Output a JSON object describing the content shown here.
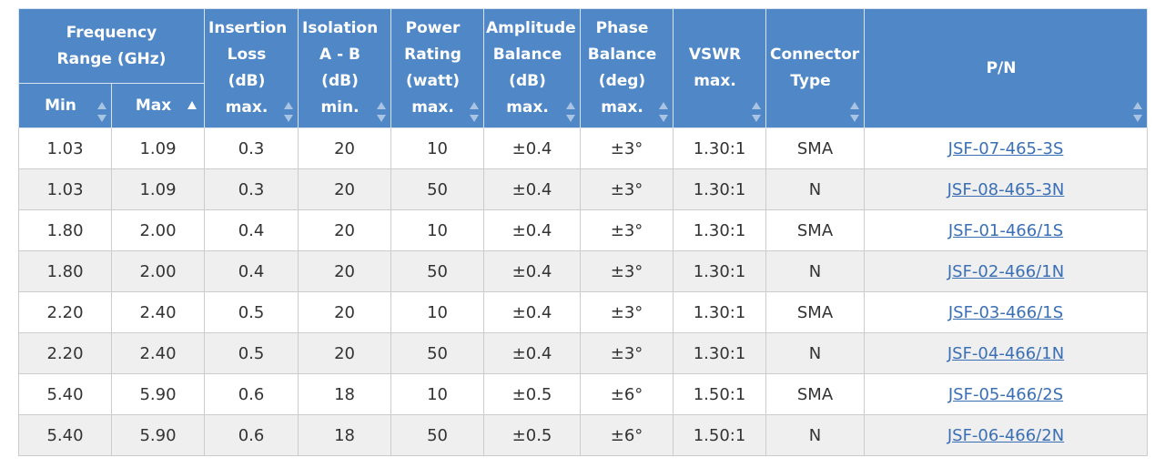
{
  "headers": {
    "frequency_range": "Frequency Range (GHz)",
    "min": "Min",
    "max": "Max",
    "insertion_loss": "Insertion Loss (dB) max.",
    "isolation": "Isolation A - B (dB) min.",
    "power_rating": "Power Rating (watt) max.",
    "amplitude_balance": "Amplitude Balance (dB) max.",
    "phase_balance": "Phase Balance (deg) max.",
    "vswr": "VSWR max.",
    "connector_type": "Connector Type",
    "pn": "P/N"
  },
  "rows": [
    {
      "min": "1.03",
      "max": "1.09",
      "il": "0.3",
      "iso": "20",
      "power": "10",
      "amp": "±0.4",
      "phase": "±3°",
      "vswr": "1.30:1",
      "conn": "SMA",
      "pn": "JSF-07-465-3S"
    },
    {
      "min": "1.03",
      "max": "1.09",
      "il": "0.3",
      "iso": "20",
      "power": "50",
      "amp": "±0.4",
      "phase": "±3°",
      "vswr": "1.30:1",
      "conn": "N",
      "pn": "JSF-08-465-3N"
    },
    {
      "min": "1.80",
      "max": "2.00",
      "il": "0.4",
      "iso": "20",
      "power": "10",
      "amp": "±0.4",
      "phase": "±3°",
      "vswr": "1.30:1",
      "conn": "SMA",
      "pn": "JSF-01-466/1S"
    },
    {
      "min": "1.80",
      "max": "2.00",
      "il": "0.4",
      "iso": "20",
      "power": "50",
      "amp": "±0.4",
      "phase": "±3°",
      "vswr": "1.30:1",
      "conn": "N",
      "pn": "JSF-02-466/1N"
    },
    {
      "min": "2.20",
      "max": "2.40",
      "il": "0.5",
      "iso": "20",
      "power": "10",
      "amp": "±0.4",
      "phase": "±3°",
      "vswr": "1.30:1",
      "conn": "SMA",
      "pn": "JSF-03-466/1S"
    },
    {
      "min": "2.20",
      "max": "2.40",
      "il": "0.5",
      "iso": "20",
      "power": "50",
      "amp": "±0.4",
      "phase": "±3°",
      "vswr": "1.30:1",
      "conn": "N",
      "pn": "JSF-04-466/1N"
    },
    {
      "min": "5.40",
      "max": "5.90",
      "il": "0.6",
      "iso": "18",
      "power": "10",
      "amp": "±0.5",
      "phase": "±6°",
      "vswr": "1.50:1",
      "conn": "SMA",
      "pn": "JSF-05-466/2S"
    },
    {
      "min": "5.40",
      "max": "5.90",
      "il": "0.6",
      "iso": "18",
      "power": "50",
      "amp": "±0.5",
      "phase": "±6°",
      "vswr": "1.50:1",
      "conn": "N",
      "pn": "JSF-06-466/2N"
    }
  ],
  "colors": {
    "header_bg": "#4f87c7",
    "row_alt_bg": "#efefef",
    "link": "#3a6fb5"
  }
}
